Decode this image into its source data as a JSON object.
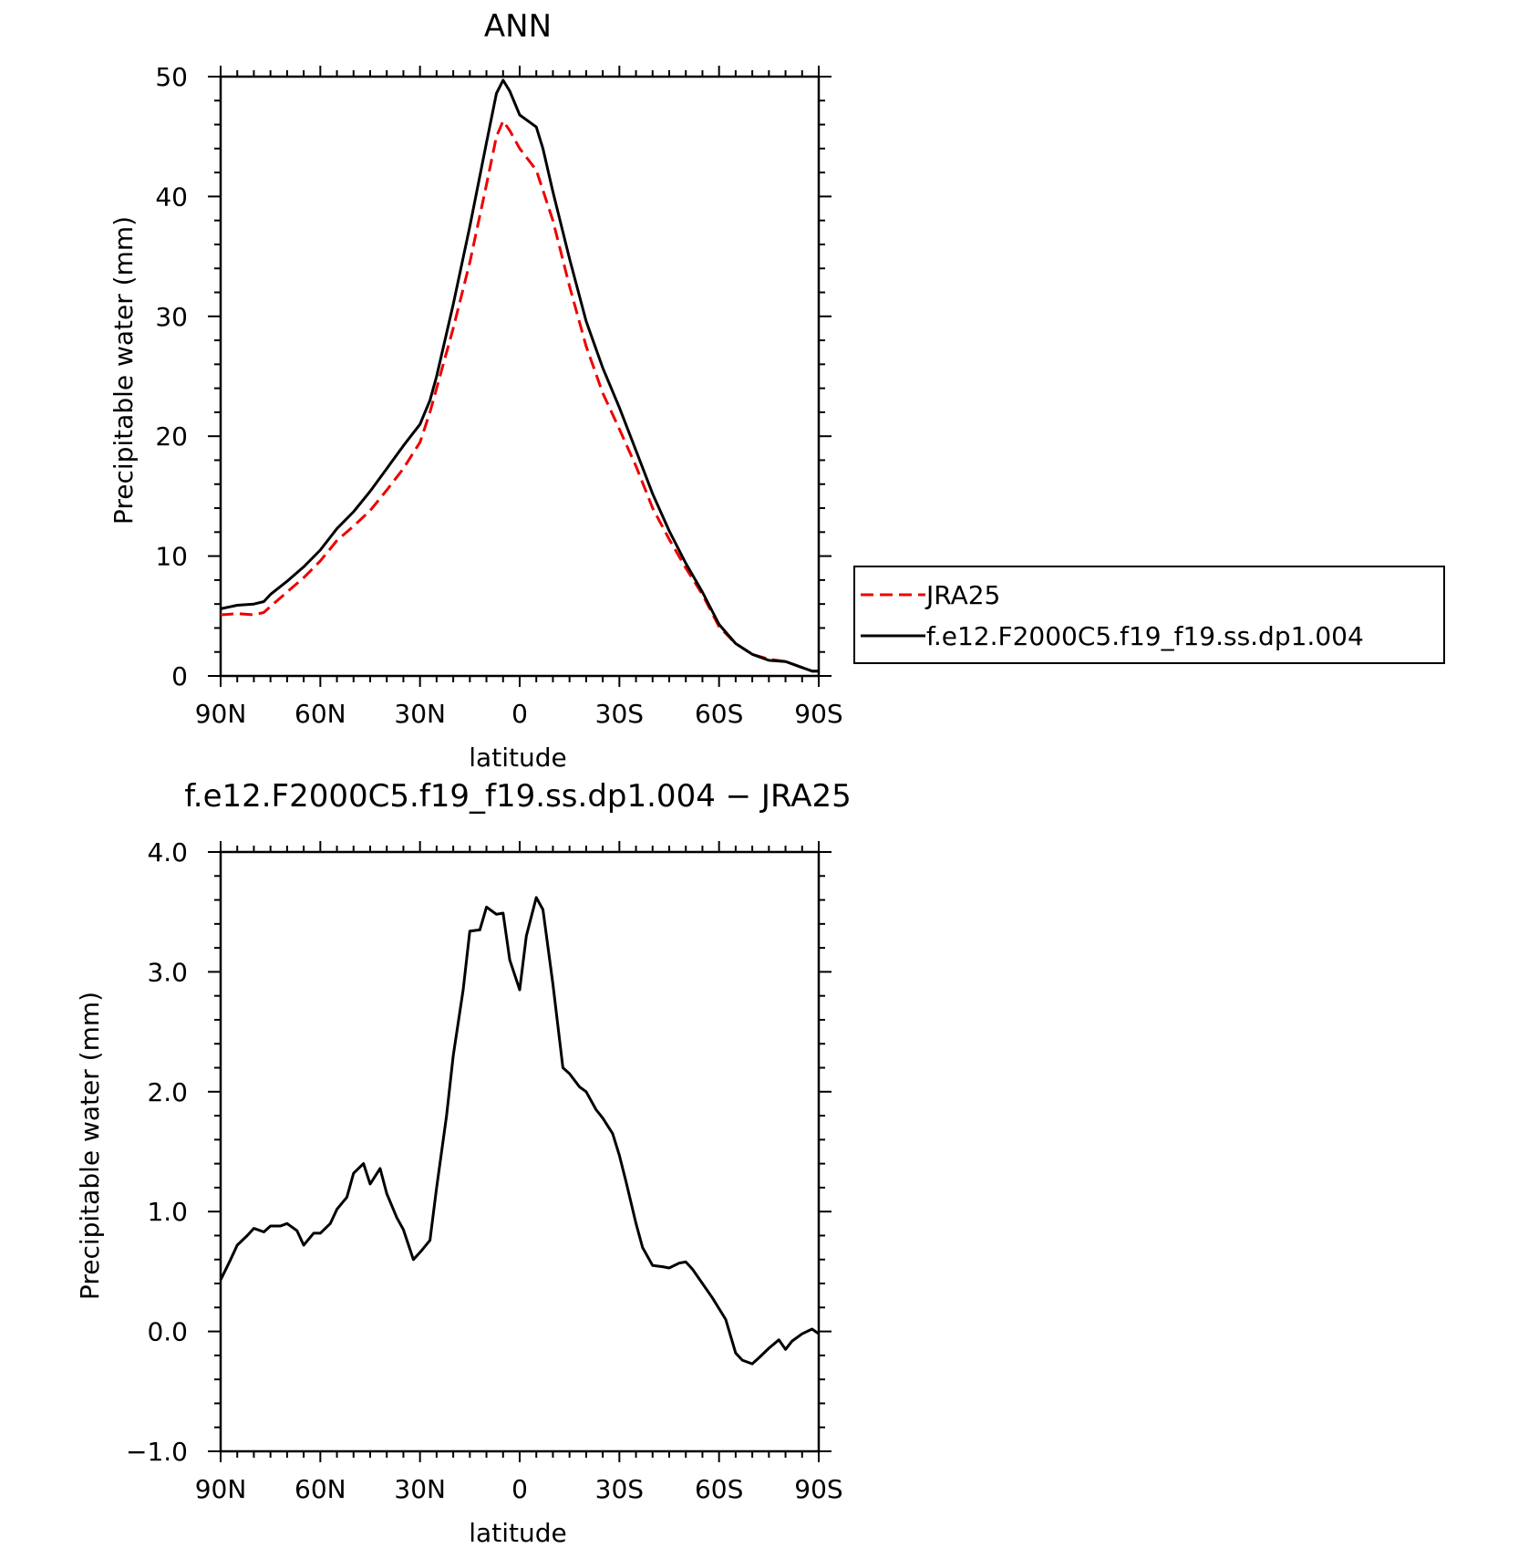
{
  "colors": {
    "model": "#000000",
    "obs": "#ee0000",
    "axis": "#000000",
    "background": "#ffffff"
  },
  "chart_data": [
    {
      "type": "line",
      "title": "ANN",
      "xlabel": "latitude",
      "ylabel": "Precipitable water (mm)",
      "x_axis_note": "latitude runs from 90N (left) to 90S (right); north positive",
      "xlim": [
        90,
        -90
      ],
      "ylim": [
        0,
        50
      ],
      "x_ticks": [
        {
          "value": 90,
          "label": "90N"
        },
        {
          "value": 60,
          "label": "60N"
        },
        {
          "value": 30,
          "label": "30N"
        },
        {
          "value": 0,
          "label": "0"
        },
        {
          "value": -30,
          "label": "30S"
        },
        {
          "value": -60,
          "label": "60S"
        },
        {
          "value": -90,
          "label": "90S"
        }
      ],
      "y_ticks": [
        {
          "value": 0,
          "label": "0"
        },
        {
          "value": 10,
          "label": "10"
        },
        {
          "value": 20,
          "label": "20"
        },
        {
          "value": 30,
          "label": "30"
        },
        {
          "value": 40,
          "label": "40"
        },
        {
          "value": 50,
          "label": "50"
        }
      ],
      "grid": false,
      "legend": {
        "placement": "right, outside plot",
        "entries": [
          {
            "label": "JRA25",
            "style": "dashed",
            "color": "#ee0000"
          },
          {
            "label": "f.e12.F2000C5.f19_f19.ss.dp1.004",
            "style": "solid",
            "color": "#000000"
          }
        ]
      },
      "series": [
        {
          "name": "JRA25",
          "style": "dashed",
          "color": "#ee0000",
          "x": [
            90,
            85,
            80,
            77,
            75,
            70,
            65,
            60,
            55,
            50,
            45,
            40,
            35,
            30,
            27,
            25,
            20,
            15,
            10,
            7,
            5,
            3,
            0,
            -5,
            -10,
            -15,
            -20,
            -25,
            -30,
            -35,
            -40,
            -45,
            -50,
            -55,
            -60,
            -65,
            -70,
            -75,
            -80,
            -85,
            -88,
            -90
          ],
          "y": [
            5.1,
            5.2,
            5.1,
            5.3,
            5.8,
            7.0,
            8.2,
            9.6,
            11.3,
            12.5,
            13.8,
            15.5,
            17.3,
            19.5,
            22.0,
            24.0,
            29.0,
            34.5,
            41.0,
            45.0,
            46.3,
            45.5,
            44.0,
            42.2,
            38.0,
            32.5,
            27.5,
            23.6,
            20.6,
            17.5,
            14.0,
            11.4,
            9.0,
            6.8,
            4.1,
            2.7,
            1.8,
            1.4,
            1.2,
            0.7,
            0.4,
            0.4
          ]
        },
        {
          "name": "f.e12.F2000C5.f19_f19.ss.dp1.004",
          "style": "solid",
          "color": "#000000",
          "x": [
            90,
            85,
            80,
            77,
            75,
            70,
            65,
            60,
            55,
            50,
            45,
            40,
            35,
            30,
            27,
            25,
            20,
            15,
            10,
            7,
            5,
            3,
            0,
            -5,
            -7,
            -10,
            -15,
            -20,
            -25,
            -30,
            -35,
            -40,
            -45,
            -50,
            -55,
            -60,
            -65,
            -70,
            -75,
            -80,
            -85,
            -88,
            -90
          ],
          "y": [
            5.6,
            5.9,
            6.0,
            6.2,
            6.8,
            7.9,
            9.1,
            10.5,
            12.3,
            13.7,
            15.4,
            17.3,
            19.2,
            21.0,
            23.0,
            25.0,
            31.0,
            37.5,
            44.5,
            48.6,
            49.7,
            48.8,
            46.8,
            45.8,
            44.0,
            40.4,
            34.8,
            29.6,
            25.7,
            22.4,
            18.8,
            15.2,
            12.1,
            9.4,
            7.0,
            4.3,
            2.7,
            1.8,
            1.3,
            1.2,
            0.7,
            0.4,
            0.4
          ]
        }
      ]
    },
    {
      "type": "line",
      "title": "f.e12.F2000C5.f19_f19.ss.dp1.004 − JRA25",
      "xlabel": "latitude",
      "ylabel": "Precipitable water (mm)",
      "xlim": [
        90,
        -90
      ],
      "ylim": [
        -1.0,
        4.0
      ],
      "x_ticks": [
        {
          "value": 90,
          "label": "90N"
        },
        {
          "value": 60,
          "label": "60N"
        },
        {
          "value": 30,
          "label": "30N"
        },
        {
          "value": 0,
          "label": "0"
        },
        {
          "value": -30,
          "label": "30S"
        },
        {
          "value": -60,
          "label": "60S"
        },
        {
          "value": -90,
          "label": "90S"
        }
      ],
      "y_ticks": [
        {
          "value": -1.0,
          "label": "−1.0"
        },
        {
          "value": 0.0,
          "label": "0.0"
        },
        {
          "value": 1.0,
          "label": "1.0"
        },
        {
          "value": 2.0,
          "label": "2.0"
        },
        {
          "value": 3.0,
          "label": "3.0"
        },
        {
          "value": 4.0,
          "label": "4.0"
        }
      ],
      "grid": false,
      "series": [
        {
          "name": "",
          "style": "solid",
          "color": "#000000",
          "x": [
            90,
            87,
            85,
            82,
            80,
            77,
            75,
            72,
            70,
            67,
            65,
            62,
            60,
            57,
            55,
            52,
            50,
            47,
            45,
            42,
            40,
            37,
            35,
            32,
            30,
            27,
            25,
            22,
            20,
            17,
            15,
            12,
            10,
            7,
            5,
            3,
            0,
            -2,
            -5,
            -7,
            -10,
            -13,
            -15,
            -18,
            -20,
            -23,
            -25,
            -28,
            -30,
            -32,
            -35,
            -37,
            -40,
            -43,
            -45,
            -48,
            -50,
            -52,
            -55,
            -58,
            -62,
            -65,
            -67,
            -70,
            -72,
            -75,
            -78,
            -80,
            -82,
            -85,
            -88,
            -90
          ],
          "y": [
            0.43,
            0.6,
            0.72,
            0.8,
            0.86,
            0.83,
            0.88,
            0.88,
            0.9,
            0.84,
            0.72,
            0.82,
            0.82,
            0.9,
            1.02,
            1.12,
            1.32,
            1.4,
            1.23,
            1.36,
            1.15,
            0.95,
            0.85,
            0.6,
            0.66,
            0.76,
            1.2,
            1.8,
            2.3,
            2.85,
            3.34,
            3.35,
            3.54,
            3.48,
            3.49,
            3.1,
            2.85,
            3.3,
            3.62,
            3.52,
            2.9,
            2.2,
            2.15,
            2.04,
            2.0,
            1.85,
            1.78,
            1.65,
            1.47,
            1.25,
            0.9,
            0.7,
            0.55,
            0.54,
            0.53,
            0.57,
            0.58,
            0.52,
            0.4,
            0.28,
            0.1,
            -0.18,
            -0.24,
            -0.27,
            -0.22,
            -0.14,
            -0.07,
            -0.15,
            -0.08,
            -0.02,
            0.02,
            -0.02
          ]
        }
      ]
    }
  ]
}
